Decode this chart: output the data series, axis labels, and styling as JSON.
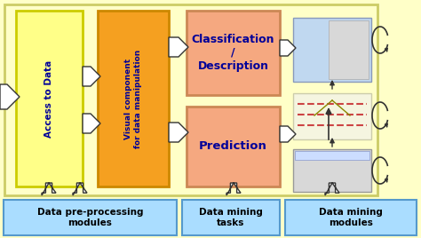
{
  "fig_bg": "#ffffc8",
  "outer_bg": "#ffffc8",
  "outer_edge": "#cccc66",
  "box_access_color": "#ffff88",
  "box_access_edge": "#cccc00",
  "box_visual_color": "#f5a020",
  "box_visual_edge": "#cc8800",
  "box_classif_color": "#f5a880",
  "box_classif_edge": "#cc8855",
  "box_predict_color": "#f5a880",
  "box_predict_edge": "#cc8855",
  "bottom_box_color": "#aaddff",
  "bottom_box_edge": "#5599cc",
  "arrow_color": "#222222",
  "text_navy": "#000099",
  "text_black": "#000000",
  "title_access": "Access to Data",
  "title_visual": "Visual component\nfor data manipulation",
  "title_classif": "Classification\n/\nDescription",
  "title_predict": "Prediction",
  "bottom_labels": [
    "Data pre-processing\nmodules",
    "Data mining\ntasks",
    "Data mining\nmodules"
  ],
  "screenshot1_color": "#c0d8f0",
  "screenshot1_edge": "#8899bb",
  "screenshot2_color": "#f0f0d0",
  "screenshot2_edge": "#aaaa88",
  "screenshot3_color": "#d8d8d8",
  "screenshot3_edge": "#999999"
}
